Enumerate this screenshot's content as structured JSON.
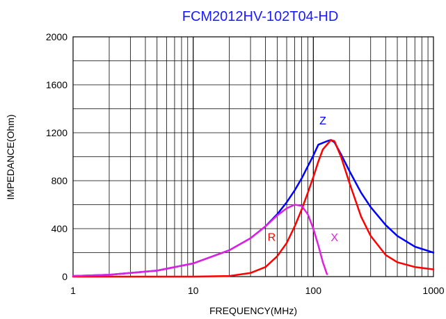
{
  "chart_data": {
    "type": "line",
    "title": "FCM2012HV-102T04-HD",
    "xlabel": "FREQUENCY(MHz)",
    "ylabel": "IMPEDANCE(Ohm)",
    "x_scale": "log",
    "xlim": [
      1,
      1000
    ],
    "ylim": [
      0,
      2000
    ],
    "grid": true,
    "x_ticks": [
      {
        "value": 1,
        "label": "1"
      },
      {
        "value": 10,
        "label": "10"
      },
      {
        "value": 100,
        "label": "100"
      },
      {
        "value": 1000,
        "label": "1000"
      }
    ],
    "y_ticks": [
      {
        "value": 0,
        "label": "0"
      },
      {
        "value": 400,
        "label": "400"
      },
      {
        "value": 800,
        "label": "800"
      },
      {
        "value": 1200,
        "label": "1200"
      },
      {
        "value": 1600,
        "label": "1600"
      },
      {
        "value": 2000,
        "label": "2000"
      }
    ],
    "series": [
      {
        "name": "Z",
        "color": "#0000ff",
        "label_at": {
          "x": 120,
          "y": 1270
        },
        "x": [
          1,
          2,
          5,
          10,
          20,
          30,
          40,
          50,
          60,
          70,
          80,
          90,
          100,
          110,
          130,
          140,
          150,
          170,
          200,
          250,
          300,
          400,
          500,
          700,
          1000
        ],
        "y": [
          5,
          15,
          50,
          110,
          220,
          320,
          420,
          520,
          620,
          720,
          820,
          920,
          1010,
          1100,
          1130,
          1140,
          1120,
          1020,
          880,
          700,
          580,
          430,
          340,
          250,
          200
        ]
      },
      {
        "name": "R",
        "color": "#ff0000",
        "label_at": {
          "x": 45,
          "y": 300
        },
        "x": [
          1,
          10,
          20,
          30,
          40,
          50,
          60,
          70,
          80,
          90,
          100,
          110,
          120,
          140,
          150,
          170,
          200,
          250,
          300,
          400,
          500,
          700,
          1000
        ],
        "y": [
          0,
          0,
          5,
          30,
          80,
          170,
          280,
          420,
          560,
          700,
          830,
          960,
          1060,
          1140,
          1130,
          1000,
          780,
          500,
          340,
          180,
          120,
          80,
          60
        ]
      },
      {
        "name": "X",
        "color": "#e020e0",
        "label_at": {
          "x": 150,
          "y": 295
        },
        "x": [
          1,
          2,
          5,
          10,
          20,
          30,
          40,
          50,
          60,
          70,
          80,
          90,
          100,
          110,
          120,
          130
        ],
        "y": [
          5,
          15,
          50,
          110,
          220,
          320,
          420,
          510,
          570,
          600,
          590,
          520,
          400,
          260,
          120,
          20
        ]
      }
    ]
  }
}
